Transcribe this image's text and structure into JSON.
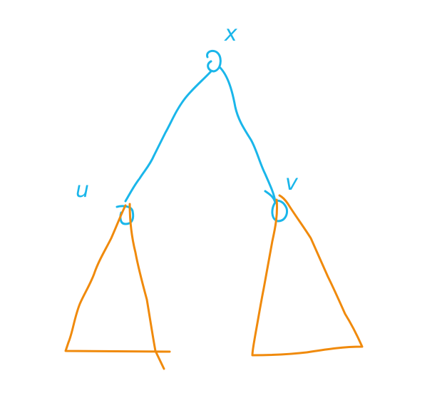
{
  "colors": {
    "background": "#ffffff",
    "tree_edges": "#1ab6ea",
    "subtrees": "#f08a0c"
  },
  "nodes": {
    "root_label": "x",
    "left_label": "u",
    "right_label": "v"
  }
}
